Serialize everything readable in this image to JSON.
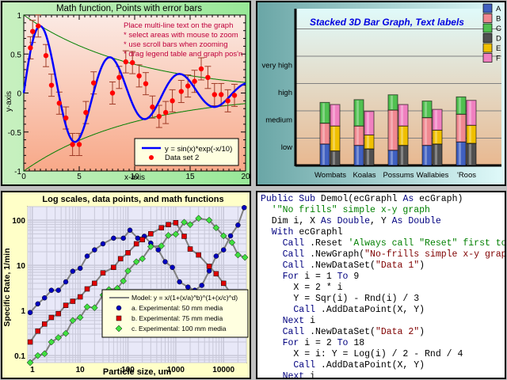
{
  "panel1": {
    "title": "Math function, Points with error bars",
    "xlabel": "x-axis",
    "ylabel": "y-axis",
    "x_ticks": [
      "0",
      "5",
      "10",
      "15",
      "20"
    ],
    "y_ticks": [
      "1",
      "0.5",
      "0",
      "-0.5",
      "-1"
    ],
    "notes": [
      "Place multi-line text on the graph",
      "*  select areas with mouse to zoom",
      "*  use scroll bars when zooming",
      "*  drag legend table and graph pos'n"
    ],
    "legend": [
      "y = sin(x)*exp(-x/10)",
      "Data set 2"
    ],
    "colors": {
      "curve": "#0000ff",
      "points": "#ff0000",
      "errorbar": "#a03c28",
      "envelope": "#008000"
    }
  },
  "panel2": {
    "title": "Stacked 3D Bar Graph, Text labels",
    "y_labels": [
      "very high",
      "high",
      "medium",
      "low"
    ],
    "categories": [
      "Wombats",
      "Koalas",
      "Possums",
      "Wallabies",
      "'Roos"
    ],
    "legend": [
      "A",
      "B",
      "C",
      "D",
      "E",
      "F"
    ],
    "colors": {
      "A": "#4060c0",
      "B": "#f08890",
      "C": "#50c050",
      "D": "#505050",
      "E": "#f0c000",
      "F": "#f080c0"
    }
  },
  "panel3": {
    "title": "Log scales, data points, and math functions",
    "xlabel": "Particle size, um",
    "ylabel": "Specific Rate, 1/min",
    "x_ticks": [
      "1",
      "10",
      "100",
      "1000",
      "10000"
    ],
    "y_ticks": [
      "100",
      "10",
      "1",
      "0.1"
    ],
    "legend": [
      "Model:  y = x/(1+(x/a)^b)^(1+(x/c)^d)",
      "a. Experimental:  50 mm media",
      "b. Experimental:  75 mm media",
      "c. Experimental:  100 mm media"
    ]
  },
  "panel4": {
    "code_lines": [
      [
        {
          "t": "Public Sub ",
          "c": "kw"
        },
        {
          "t": "Demol(ecGraphl ",
          "c": ""
        },
        {
          "t": "As",
          "c": "kw"
        },
        {
          "t": " ecGraph)",
          "c": ""
        }
      ],
      [
        {
          "t": "  '\"No frills\" simple x-y graph",
          "c": "cm"
        }
      ],
      [
        {
          "t": "  Dim i, X ",
          "c": ""
        },
        {
          "t": "As Double",
          "c": "kw"
        },
        {
          "t": ", Y ",
          "c": ""
        },
        {
          "t": "As Double",
          "c": "kw"
        }
      ],
      [
        {
          "t": "  With ",
          "c": "kw"
        },
        {
          "t": "ecGraphl",
          "c": ""
        }
      ],
      [
        {
          "t": "    Call",
          "c": "kw"
        },
        {
          "t": " .Reset ",
          "c": ""
        },
        {
          "t": "'Always call \"Reset\" first to",
          "c": "cm"
        }
      ],
      [
        {
          "t": "    Call",
          "c": "kw"
        },
        {
          "t": " .NewGraph(",
          "c": ""
        },
        {
          "t": "\"No-frills simple x-y grap",
          "c": "st"
        }
      ],
      [
        {
          "t": "    Call",
          "c": "kw"
        },
        {
          "t": " .NewDataSet(",
          "c": ""
        },
        {
          "t": "\"Data 1\"",
          "c": "st"
        },
        {
          "t": ")",
          "c": ""
        }
      ],
      [
        {
          "t": "    For",
          "c": "kw"
        },
        {
          "t": " i = 1 ",
          "c": ""
        },
        {
          "t": "To",
          "c": "kw"
        },
        {
          "t": " 9",
          "c": ""
        }
      ],
      [
        {
          "t": "      X = 2 * i",
          "c": ""
        }
      ],
      [
        {
          "t": "      Y = Sqr(i) - Rnd(i) / 3",
          "c": ""
        }
      ],
      [
        {
          "t": "      Call",
          "c": "kw"
        },
        {
          "t": " .AddDataPoint(X, Y)",
          "c": ""
        }
      ],
      [
        {
          "t": "    Next",
          "c": "kw"
        },
        {
          "t": " i",
          "c": ""
        }
      ],
      [
        {
          "t": "    Call",
          "c": "kw"
        },
        {
          "t": " .NewDataSet(",
          "c": ""
        },
        {
          "t": "\"Data 2\"",
          "c": "st"
        },
        {
          "t": ")",
          "c": ""
        }
      ],
      [
        {
          "t": "    For",
          "c": "kw"
        },
        {
          "t": " i = 2 ",
          "c": ""
        },
        {
          "t": "To",
          "c": "kw"
        },
        {
          "t": " 18",
          "c": ""
        }
      ],
      [
        {
          "t": "      X = i: Y = Log(i) / 2 - Rnd / 4",
          "c": ""
        }
      ],
      [
        {
          "t": "      Call",
          "c": "kw"
        },
        {
          "t": " .AddDataPoint(X, Y)",
          "c": ""
        }
      ],
      [
        {
          "t": "    Next",
          "c": "kw"
        },
        {
          "t": " i",
          "c": ""
        }
      ]
    ]
  },
  "chart_data": [
    {
      "type": "line",
      "title": "Math function, Points with error bars",
      "xlabel": "x-axis",
      "ylabel": "y-axis",
      "xlim": [
        0,
        20
      ],
      "ylim": [
        -1,
        1
      ],
      "series": [
        {
          "name": "y = sin(x)*exp(-x/10)",
          "function": "sin(x)*exp(-x/10)"
        },
        {
          "name": "Data set 2",
          "x": [
            0.6,
            0.8,
            1.3,
            2.0,
            2.5,
            3.2,
            3.8,
            4.4,
            5.0,
            5.6,
            6.3,
            8.0,
            8.6,
            9.2,
            9.8,
            10.4,
            11.0,
            11.6,
            12.2,
            12.8,
            13.4,
            14.2,
            14.8,
            15.4,
            16.0,
            16.6,
            17.2,
            17.8,
            18.4,
            19.0
          ],
          "y": [
            0.58,
            0.79,
            0.86,
            0.48,
            0.1,
            -0.13,
            -0.32,
            -0.66,
            -0.66,
            -0.25,
            0.13,
            0.0,
            0.2,
            0.4,
            0.39,
            0.22,
            0.12,
            -0.18,
            -0.3,
            -0.25,
            -0.1,
            0.02,
            0.09,
            0.15,
            0.31,
            0.2,
            -0.02,
            -0.02,
            -0.1,
            -0.03
          ]
        }
      ]
    },
    {
      "type": "bar",
      "title": "Stacked 3D Bar Graph, Text labels",
      "categories": [
        "Wombats",
        "Koalas",
        "Possums",
        "Wallabies",
        "'Roos"
      ],
      "stacked": true,
      "series": [
        {
          "name": "A",
          "values": [
            1.55,
            1.45,
            1.1,
            1.45,
            1.7
          ]
        },
        {
          "name": "B",
          "values": [
            1.5,
            1.4,
            2.9,
            2.0,
            2.0
          ]
        },
        {
          "name": "C",
          "values": [
            1.5,
            1.9,
            1.1,
            1.2,
            1.25
          ]
        },
        {
          "name": "D",
          "values": [
            1.05,
            1.2,
            1.45,
            1.55,
            1.6
          ]
        },
        {
          "name": "E",
          "values": [
            1.8,
            1.0,
            1.4,
            1.0,
            1.3
          ]
        },
        {
          "name": "F",
          "values": [
            1.55,
            1.7,
            1.55,
            1.5,
            1.8
          ]
        }
      ],
      "y_labels": [
        "low",
        "medium",
        "high",
        "very high"
      ]
    },
    {
      "type": "scatter",
      "title": "Log scales, data points, and math functions",
      "xlabel": "Particle size, um",
      "ylabel": "Specific Rate, 1/min",
      "xscale": "log",
      "yscale": "log",
      "xlim": [
        0.8,
        30000
      ],
      "ylim": [
        0.07,
        200
      ],
      "series": [
        {
          "name": "a. Experimental: 50 mm media",
          "x": [
            0.9,
            1.3,
            1.8,
            2.5,
            3.5,
            5,
            7,
            10,
            14,
            20,
            30,
            50,
            80,
            110,
            160,
            220,
            300,
            430,
            600,
            850,
            1200,
            1800,
            2500,
            3500,
            5000,
            7000,
            10000,
            14000,
            20000,
            27000
          ],
          "y": [
            0.9,
            1.4,
            1.9,
            2.8,
            2.8,
            4.3,
            7.4,
            8.6,
            16,
            22,
            30,
            40,
            40,
            60,
            40,
            44,
            31,
            22,
            12,
            9,
            4.3,
            3.3,
            2.8,
            3.6,
            7.5,
            16,
            22,
            45,
            78,
            190
          ]
        },
        {
          "name": "b. Experimental: 75 mm media",
          "x": [
            0.9,
            1.3,
            1.8,
            2.5,
            3.5,
            5,
            7,
            10,
            14,
            20,
            30,
            50,
            70,
            100,
            150,
            200,
            300,
            500,
            700,
            1000,
            1500,
            2000,
            3000,
            5000,
            7000,
            10000,
            15000,
            20000,
            28000
          ],
          "y": [
            0.2,
            0.35,
            0.5,
            0.7,
            0.85,
            1.3,
            1.6,
            2,
            3,
            4,
            6.8,
            9,
            14,
            19,
            30,
            37,
            50,
            68,
            80,
            88,
            44,
            23,
            17,
            9.5,
            6.5,
            4,
            2.2,
            2,
            1.7
          ]
        },
        {
          "name": "c. Experimental: 100 mm media",
          "x": [
            0.9,
            1.3,
            1.8,
            2.5,
            3.5,
            5,
            7,
            10,
            14,
            20,
            30,
            40,
            60,
            80,
            100,
            150,
            200,
            300,
            500,
            700,
            1000,
            1500,
            2000,
            3000,
            5000,
            7000,
            10000,
            15000,
            20000,
            28000
          ],
          "y": [
            0.07,
            0.1,
            0.11,
            0.2,
            0.25,
            0.31,
            0.6,
            0.7,
            1.2,
            1.15,
            2.2,
            2.9,
            3.1,
            4.5,
            7.5,
            12,
            14,
            26,
            27,
            46,
            49,
            90,
            80,
            110,
            100,
            68,
            45,
            32,
            17,
            15
          ]
        },
        {
          "name": "Model",
          "function": "x/(1+(x/a)^b)^(1+(x/c)^d)"
        }
      ]
    }
  ]
}
